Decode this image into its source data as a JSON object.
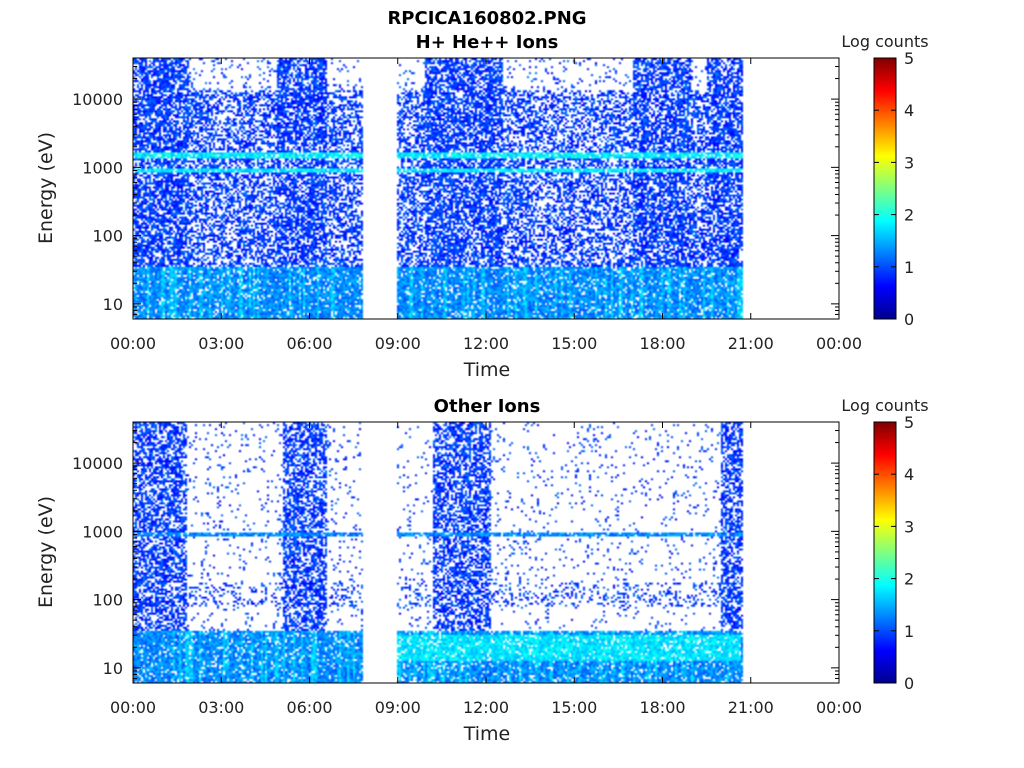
{
  "figure": {
    "title": "RPCICA160802.PNG"
  },
  "chart_data": [
    {
      "type": "heatmap",
      "title": "H+ He++ Ions",
      "xlabel": "Time",
      "ylabel": "Energy (eV)",
      "x_ticks": [
        "00:00",
        "03:00",
        "06:00",
        "09:00",
        "12:00",
        "15:00",
        "18:00",
        "21:00",
        "00:00"
      ],
      "y_scale": "log",
      "y_ticks": [
        "10",
        "100",
        "1000",
        "10000"
      ],
      "y_tick_values": [
        10,
        100,
        1000,
        10000
      ],
      "xlim_hours": [
        0,
        24
      ],
      "ylim": [
        6,
        40000
      ],
      "data_gaps_hours": [
        [
          7.85,
          9.0
        ],
        [
          20.75,
          24
        ]
      ],
      "high_activity_hours": [
        [
          0,
          1.9
        ],
        [
          4.9,
          6.6
        ],
        [
          9.9,
          12.6
        ],
        [
          17.0,
          19.0
        ],
        [
          19.5,
          21.6
        ]
      ],
      "band_energies_ev": [
        20,
        900,
        1500
      ],
      "colorbar": {
        "label": "Log counts",
        "ticks": [
          "0",
          "1",
          "2",
          "3",
          "4",
          "5"
        ],
        "range": [
          0,
          5
        ],
        "colormap": "jet"
      },
      "grid": false
    },
    {
      "type": "heatmap",
      "title": "Other Ions",
      "xlabel": "Time",
      "ylabel": "Energy (eV)",
      "x_ticks": [
        "00:00",
        "03:00",
        "06:00",
        "09:00",
        "12:00",
        "15:00",
        "18:00",
        "21:00",
        "00:00"
      ],
      "y_scale": "log",
      "y_ticks": [
        "10",
        "100",
        "1000",
        "10000"
      ],
      "y_tick_values": [
        10,
        100,
        1000,
        10000
      ],
      "xlim_hours": [
        0,
        24
      ],
      "ylim": [
        6,
        40000
      ],
      "data_gaps_hours": [
        [
          7.85,
          9.0
        ],
        [
          20.75,
          24
        ]
      ],
      "high_activity_hours": [
        [
          0,
          1.85
        ],
        [
          5.1,
          6.6
        ],
        [
          10.2,
          12.2
        ],
        [
          20.0,
          21.6
        ]
      ],
      "band_energies_ev": [
        18,
        900
      ],
      "colorbar": {
        "label": "Log counts",
        "ticks": [
          "0",
          "1",
          "2",
          "3",
          "4",
          "5"
        ],
        "range": [
          0,
          5
        ],
        "colormap": "jet"
      },
      "grid": false
    }
  ]
}
